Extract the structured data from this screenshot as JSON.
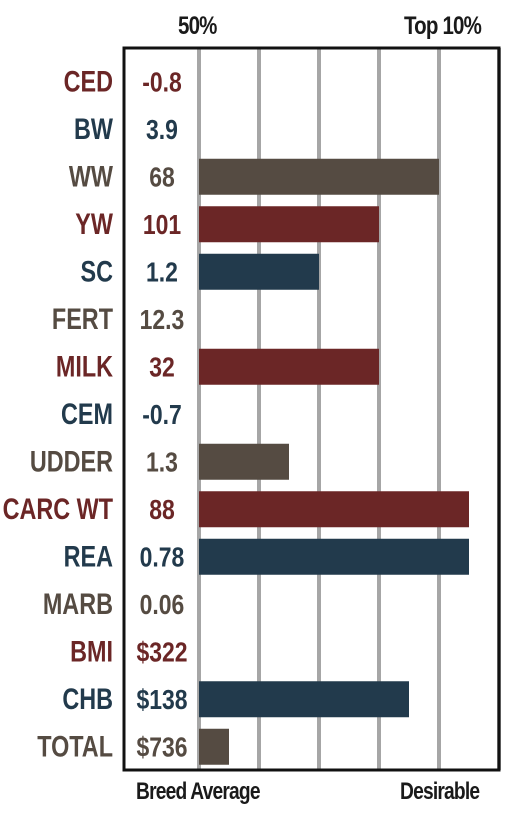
{
  "header": {
    "left": "50%",
    "right": "Top 10%"
  },
  "footer": {
    "left": "Breed Average",
    "right": "Desirable"
  },
  "colors": {
    "red": "#6b2626",
    "blue": "#223a4c",
    "brown": "#554b42",
    "grid": "#a6a6a6",
    "frame": "#111111"
  },
  "chart_data": {
    "type": "bar",
    "orientation": "horizontal",
    "xlim": [
      0,
      5
    ],
    "grid": true,
    "categories": [
      "CED",
      "BW",
      "WW",
      "YW",
      "SC",
      "FERT",
      "MILK",
      "CEM",
      "UDDER",
      "CARC WT",
      "REA",
      "MARB",
      "BMI",
      "CHB",
      "TOTAL"
    ],
    "values_text": [
      "-0.8",
      "3.9",
      "68",
      "101",
      "1.2",
      "12.3",
      "32",
      "-0.7",
      "1.3",
      "88",
      "0.78",
      "0.06",
      "$322",
      "$138",
      "$736"
    ],
    "values": [
      0,
      0,
      4,
      3,
      2,
      0,
      3,
      0,
      1.5,
      4.5,
      4.5,
      0,
      0,
      3.5,
      0.5
    ],
    "colors": [
      "red",
      "blue",
      "brown",
      "red",
      "blue",
      "brown",
      "red",
      "blue",
      "brown",
      "red",
      "blue",
      "brown",
      "red",
      "blue",
      "brown"
    ]
  }
}
